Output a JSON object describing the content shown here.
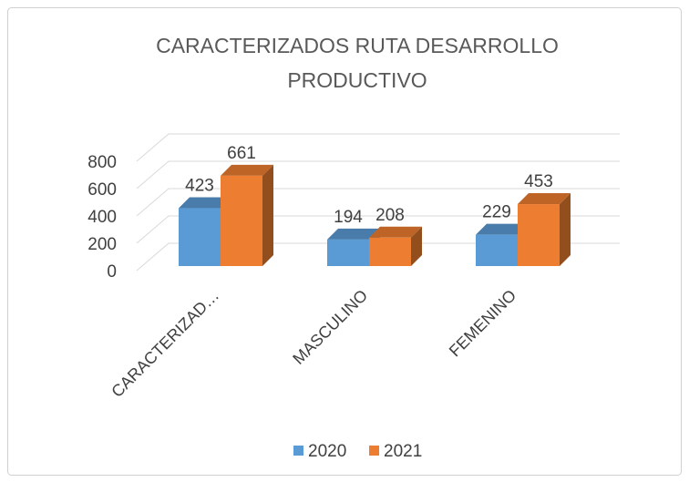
{
  "chart_data": {
    "type": "bar3d",
    "title": [
      "CARACTERIZADOS RUTA DESARROLLO",
      "PRODUCTIVO"
    ],
    "categories": [
      "CARACTERIZAD…",
      "MASCULINO",
      "FEMENINO"
    ],
    "series": [
      {
        "name": "2020",
        "color": "#5b9bd5",
        "values": [
          423,
          194,
          229
        ]
      },
      {
        "name": "2021",
        "color": "#ed7d31",
        "values": [
          661,
          208,
          453
        ]
      }
    ],
    "ylim": [
      0,
      800
    ],
    "yticks": [
      0,
      200,
      400,
      600,
      800
    ],
    "grid": true,
    "legend": "bottom"
  }
}
